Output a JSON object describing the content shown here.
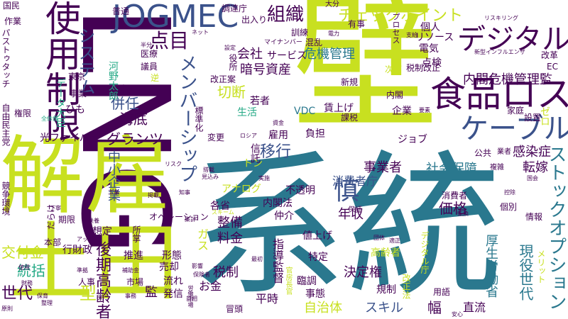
{
  "palette": {
    "dark_purple": "#440154",
    "blue": "#3b528b",
    "teal": "#2a788e",
    "green": "#22a884",
    "lime": "#7ad151",
    "yellow": "#c8e020"
  },
  "words": [
    {
      "text": "LNG",
      "c": "#440154"
    },
    {
      "text": "壁",
      "c": "#c8e020"
    },
    {
      "text": "系統",
      "c": "#2a788e"
    },
    {
      "text": "解雇",
      "c": "#c8e020"
    },
    {
      "text": "土田",
      "c": "#c8e020"
    },
    {
      "text": "使用制限",
      "c": "#440154"
    },
    {
      "text": "食品ロス",
      "c": "#440154"
    },
    {
      "text": "JOGMEC",
      "c": "#3b528b"
    },
    {
      "text": "デジタル",
      "c": "#440154"
    },
    {
      "text": "ケーブル",
      "c": "#3b528b"
    },
    {
      "text": "チェックポイント",
      "c": "#c8e020"
    },
    {
      "text": "組織",
      "c": "#440154"
    },
    {
      "text": "点目",
      "c": "#440154"
    },
    {
      "text": "危機管理",
      "c": "#2a788e"
    },
    {
      "text": "内閣危機管理監",
      "c": "#440154"
    },
    {
      "text": "暗号資産",
      "c": "#440154"
    },
    {
      "text": "会社",
      "c": "#440154"
    },
    {
      "text": "サービス",
      "c": "#440154"
    },
    {
      "text": "切断",
      "c": "#c8e020"
    },
    {
      "text": "併任",
      "c": "#3b528b"
    },
    {
      "text": "海底",
      "c": "#440154"
    },
    {
      "text": "グランツ",
      "c": "#440154"
    },
    {
      "text": "移行",
      "c": "#3b528b"
    },
    {
      "text": "感染症",
      "c": "#440154"
    },
    {
      "text": "転嫁",
      "c": "#440154"
    },
    {
      "text": "ストックオプション",
      "c": "#2a788e"
    },
    {
      "text": "システム",
      "c": "#3b528b"
    },
    {
      "text": "メンバーシップ",
      "c": "#3b528b"
    },
    {
      "text": "中小企業",
      "c": "#3b528b"
    },
    {
      "text": "慎",
      "c": "#3b528b"
    },
    {
      "text": "消費者庁",
      "c": "#3b528b"
    },
    {
      "text": "事業者",
      "c": "#440154"
    },
    {
      "text": "年収",
      "c": "#440154"
    },
    {
      "text": "価格",
      "c": "#440154"
    },
    {
      "text": "整備",
      "c": "#440154"
    },
    {
      "text": "料金",
      "c": "#440154"
    },
    {
      "text": "交付金",
      "c": "#c8e020"
    },
    {
      "text": "統括",
      "c": "#22a884"
    },
    {
      "text": "世代",
      "c": "#440154"
    },
    {
      "text": "後期高齢者",
      "c": "#440154"
    },
    {
      "text": "税制",
      "c": "#440154"
    },
    {
      "text": "決定権",
      "c": "#440154"
    },
    {
      "text": "スキル",
      "c": "#3b528b"
    },
    {
      "text": "自治体",
      "c": "#c8e020"
    },
    {
      "text": "現役世代",
      "c": "#2a788e"
    },
    {
      "text": "厚生労働省",
      "c": "#2a788e"
    },
    {
      "text": "社会保障",
      "c": "#2a788e"
    },
    {
      "text": "型",
      "c": "#c8e020"
    },
    {
      "text": "お金",
      "c": "#440154"
    },
    {
      "text": "平時",
      "c": "#440154"
    },
    {
      "text": "直流",
      "c": "#440154"
    },
    {
      "text": "幅",
      "c": "#440154"
    },
    {
      "text": "特定",
      "c": "#440154"
    },
    {
      "text": "事態",
      "c": "#440154"
    },
    {
      "text": "臨調",
      "c": "#440154"
    },
    {
      "text": "規制",
      "c": "#440154"
    },
    {
      "text": "アナログ",
      "c": "#c8e020"
    },
    {
      "text": "不透明",
      "c": "#440154"
    },
    {
      "text": "値上げ",
      "c": "#440154"
    },
    {
      "text": "指導監督",
      "c": "#440154"
    },
    {
      "text": "高齢者",
      "c": "#c8e020"
    },
    {
      "text": "ガス",
      "c": "#c8e020"
    },
    {
      "text": "各省",
      "c": "#440154"
    },
    {
      "text": "内閣法",
      "c": "#440154"
    },
    {
      "text": "仲介",
      "c": "#440154"
    },
    {
      "text": "推進",
      "c": "#440154"
    },
    {
      "text": "形態",
      "c": "#440154"
    },
    {
      "text": "売却",
      "c": "#440154"
    },
    {
      "text": "発信",
      "c": "#440154"
    },
    {
      "text": "流れ",
      "c": "#440154"
    },
    {
      "text": "市場",
      "c": "#440154"
    },
    {
      "text": "監",
      "c": "#440154"
    },
    {
      "text": "人事",
      "c": "#440154"
    },
    {
      "text": "想定",
      "c": "#440154"
    },
    {
      "text": "行財政",
      "c": "#440154"
    },
    {
      "text": "オペレーション",
      "c": "#440154"
    },
    {
      "text": "光ファイバー",
      "c": "#440154"
    },
    {
      "text": "データ大臣",
      "c": "#22a884"
    },
    {
      "text": "ひも",
      "c": "#440154"
    },
    {
      "text": "東京",
      "c": "#440154"
    },
    {
      "text": "事業",
      "c": "#440154"
    },
    {
      "text": "議員",
      "c": "#440154"
    },
    {
      "text": "医療",
      "c": "#440154"
    },
    {
      "text": "若者",
      "c": "#440154"
    },
    {
      "text": "生活",
      "c": "#22a884"
    },
    {
      "text": "VDC",
      "c": "#2a788e"
    },
    {
      "text": "賃上げ",
      "c": "#440154"
    },
    {
      "text": "負担",
      "c": "#440154"
    },
    {
      "text": "企業",
      "c": "#440154"
    },
    {
      "text": "ジョブ",
      "c": "#440154"
    },
    {
      "text": "雇用",
      "c": "#440154"
    },
    {
      "text": "電気",
      "c": "#440154"
    },
    {
      "text": "点検",
      "c": "#440154"
    },
    {
      "text": "リソース",
      "c": "#440154"
    },
    {
      "text": "個人",
      "c": "#440154"
    },
    {
      "text": "有事",
      "c": "#440154"
    },
    {
      "text": "調達庁",
      "c": "#440154"
    },
    {
      "text": "出入り",
      "c": "#440154"
    },
    {
      "text": "普通",
      "c": "#440154"
    },
    {
      "text": "作業",
      "c": "#440154"
    },
    {
      "text": "国民",
      "c": "#440154"
    },
    {
      "text": "訓練",
      "c": "#440154"
    },
    {
      "text": "混乱",
      "c": "#440154"
    },
    {
      "text": "新規",
      "c": "#440154"
    },
    {
      "text": "税制改正",
      "c": "#440154"
    },
    {
      "text": "次第",
      "c": "#c8e020"
    },
    {
      "text": "内閣",
      "c": "#440154"
    },
    {
      "text": "改革",
      "c": "#440154"
    },
    {
      "text": "EC",
      "c": "#440154"
    },
    {
      "text": "ゼロ",
      "c": "#c8e020"
    },
    {
      "text": "家庭",
      "c": "#440154"
    },
    {
      "text": "設置",
      "c": "#440154"
    },
    {
      "text": "公共",
      "c": "#440154"
    },
    {
      "text": "業者",
      "c": "#440154"
    },
    {
      "text": "複雑",
      "c": "#440154"
    },
    {
      "text": "消費者",
      "c": "#440154"
    },
    {
      "text": "個別",
      "c": "#440154"
    },
    {
      "text": "情報",
      "c": "#440154"
    },
    {
      "text": "課税",
      "c": "#440154"
    },
    {
      "text": "信託",
      "c": "#440154"
    },
    {
      "text": "変更",
      "c": "#440154"
    },
    {
      "text": "標準化",
      "c": "#440154"
    },
    {
      "text": "改正法",
      "c": "#c8e020"
    },
    {
      "text": "権限",
      "c": "#440154"
    },
    {
      "text": "自由民主党",
      "c": "#440154"
    },
    {
      "text": "パストゥタッチ",
      "c": "#440154"
    },
    {
      "text": "期限",
      "c": "#440154"
    },
    {
      "text": "本部",
      "c": "#440154"
    },
    {
      "text": "だらけ",
      "c": "#440154"
    },
    {
      "text": "冒頭",
      "c": "#440154"
    },
    {
      "text": "用語",
      "c": "#440154"
    },
    {
      "text": "デジタル庁",
      "c": "#c8e020"
    },
    {
      "text": "逆",
      "c": "#c8e020"
    },
    {
      "text": "大分",
      "c": "#440154"
    },
    {
      "text": "マイナンバー",
      "c": "#440154"
    },
    {
      "text": "プロセス",
      "c": "#440154"
    },
    {
      "text": "リスキリング",
      "c": "#440154"
    },
    {
      "text": "新型インフルエンザ",
      "c": "#440154"
    },
    {
      "text": "電力",
      "c": "#440154"
    },
    {
      "text": "設定",
      "c": "#440154"
    },
    {
      "text": "役所",
      "c": "#440154"
    },
    {
      "text": "競争環境",
      "c": "#440154"
    },
    {
      "text": "リスク",
      "c": "#440154"
    },
    {
      "text": "官房長官",
      "c": "#c8e020"
    },
    {
      "text": "河野太郎",
      "c": "#22a884"
    },
    {
      "text": "メリット",
      "c": "#c8e020"
    },
    {
      "text": "改正案",
      "c": "#440154"
    },
    {
      "text": "保証",
      "c": "#440154"
    },
    {
      "text": "集計",
      "c": "#440154"
    },
    {
      "text": "見込み",
      "c": "#440154"
    },
    {
      "text": "スキーム",
      "c": "#c8e020"
    },
    {
      "text": "アップ",
      "c": "#440154"
    },
    {
      "text": "所掌",
      "c": "#440154"
    },
    {
      "text": "事務",
      "c": "#440154"
    },
    {
      "text": "半分",
      "c": "#440154"
    },
    {
      "text": "ネット",
      "c": "#440154"
    },
    {
      "text": "要素",
      "c": "#440154"
    },
    {
      "text": "適正",
      "c": "#440154"
    },
    {
      "text": "団体",
      "c": "#440154"
    },
    {
      "text": "実施",
      "c": "#440154"
    },
    {
      "text": "最初",
      "c": "#440154"
    },
    {
      "text": "掲載",
      "c": "#440154"
    },
    {
      "text": "ロシア",
      "c": "#440154"
    },
    {
      "text": "資金",
      "c": "#440154"
    },
    {
      "text": "トン",
      "c": "#c8e020"
    },
    {
      "text": "支給",
      "c": "#440154"
    },
    {
      "text": "財務",
      "c": "#440154"
    },
    {
      "text": "使用",
      "c": "#440154"
    },
    {
      "text": "原則",
      "c": "#440154"
    },
    {
      "text": "準拠",
      "c": "#440154"
    },
    {
      "text": "補助金",
      "c": "#440154"
    },
    {
      "text": "丁寧",
      "c": "#440154"
    },
    {
      "text": "全体像",
      "c": "#22a884"
    },
    {
      "text": "搭載",
      "c": "#440154"
    },
    {
      "text": "労働市場",
      "c": "#440154"
    },
    {
      "text": "工事",
      "c": "#440154"
    },
    {
      "text": "保育",
      "c": "#440154"
    },
    {
      "text": "整理",
      "c": "#440154"
    },
    {
      "text": "扶養",
      "c": "#440154"
    },
    {
      "text": "影響",
      "c": "#440154"
    },
    {
      "text": "控除",
      "c": "#440154"
    },
    {
      "text": "知事",
      "c": "#440154"
    },
    {
      "text": "保険者",
      "c": "#440154"
    },
    {
      "text": "首相",
      "c": "#440154"
    },
    {
      "text": "安心",
      "c": "#440154"
    },
    {
      "text": "出張",
      "c": "#440154"
    },
    {
      "text": "交渉",
      "c": "#440154"
    },
    {
      "text": "転換",
      "c": "#440154"
    },
    {
      "text": "国会",
      "c": "#440154"
    }
  ]
}
